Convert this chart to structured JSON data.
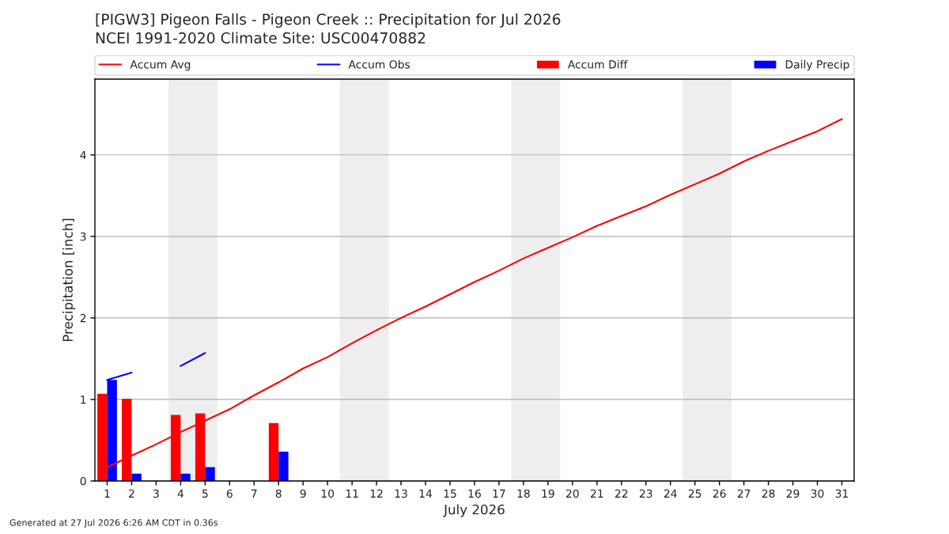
{
  "chart_data": {
    "type": "bar",
    "title": "[PIGW3] Pigeon Falls - Pigeon Creek :: Precipitation for Jul 2026",
    "subtitle": "NCEI 1991-2020 Climate Site: USC00470882",
    "xlabel": "July 2026",
    "ylabel": "Precipitation [inch]",
    "x": [
      1,
      2,
      3,
      4,
      5,
      6,
      7,
      8,
      9,
      10,
      11,
      12,
      13,
      14,
      15,
      16,
      17,
      18,
      19,
      20,
      21,
      22,
      23,
      24,
      25,
      26,
      27,
      28,
      29,
      30,
      31
    ],
    "xlim": [
      0.5,
      31.5
    ],
    "xticks": [
      1,
      2,
      3,
      4,
      5,
      6,
      7,
      8,
      9,
      10,
      11,
      12,
      13,
      14,
      15,
      16,
      17,
      18,
      19,
      20,
      21,
      22,
      23,
      24,
      25,
      26,
      27,
      28,
      29,
      30,
      31
    ],
    "ylim": [
      0,
      4.93
    ],
    "yticks": [
      0,
      1,
      2,
      3,
      4
    ],
    "grid": "y",
    "legend": "top",
    "bands": [
      {
        "axis": "x",
        "from": 3.5,
        "to": 5.5,
        "color": "#eeeeee"
      },
      {
        "axis": "x",
        "from": 10.5,
        "to": 12.5,
        "color": "#eeeeee"
      },
      {
        "axis": "x",
        "from": 17.5,
        "to": 19.5,
        "color": "#eeeeee"
      },
      {
        "axis": "x",
        "from": 24.5,
        "to": 26.5,
        "color": "#eeeeee"
      }
    ],
    "series": [
      {
        "name": "Accum Avg",
        "type": "line",
        "color": "#ff0000",
        "values": [
          0.17,
          0.31,
          0.45,
          0.6,
          0.74,
          0.88,
          1.05,
          1.21,
          1.38,
          1.52,
          1.69,
          1.85,
          2.0,
          2.14,
          2.29,
          2.44,
          2.58,
          2.73,
          2.86,
          2.99,
          3.13,
          3.25,
          3.37,
          3.51,
          3.64,
          3.77,
          3.92,
          4.05,
          4.17,
          4.29,
          4.44
        ]
      },
      {
        "name": "Accum Obs",
        "type": "line",
        "color": "#0000ff",
        "values": [
          1.24,
          1.33,
          null,
          1.41,
          1.57,
          null,
          null,
          null,
          null,
          null,
          null,
          null,
          null,
          null,
          null,
          null,
          null,
          null,
          null,
          null,
          null,
          null,
          null,
          null,
          null,
          null,
          null,
          null,
          null,
          null,
          null
        ]
      },
      {
        "name": "Accum Diff",
        "color": "#ff0000",
        "values": [
          1.07,
          1.01,
          null,
          0.81,
          0.83,
          null,
          null,
          0.71,
          null,
          null,
          null,
          null,
          null,
          null,
          null,
          null,
          null,
          null,
          null,
          null,
          null,
          null,
          null,
          null,
          null,
          null,
          null,
          null,
          null,
          null,
          null
        ]
      },
      {
        "name": "Daily Precip",
        "color": "#0000ff",
        "values": [
          1.24,
          0.09,
          null,
          0.09,
          0.17,
          null,
          null,
          0.36,
          null,
          null,
          null,
          null,
          null,
          null,
          null,
          null,
          null,
          null,
          null,
          null,
          null,
          null,
          null,
          null,
          null,
          null,
          null,
          null,
          null,
          null,
          null
        ]
      }
    ],
    "annotations": [
      "Generated at 27 Jul 2026 6:26 AM CDT in 0.36s"
    ]
  }
}
